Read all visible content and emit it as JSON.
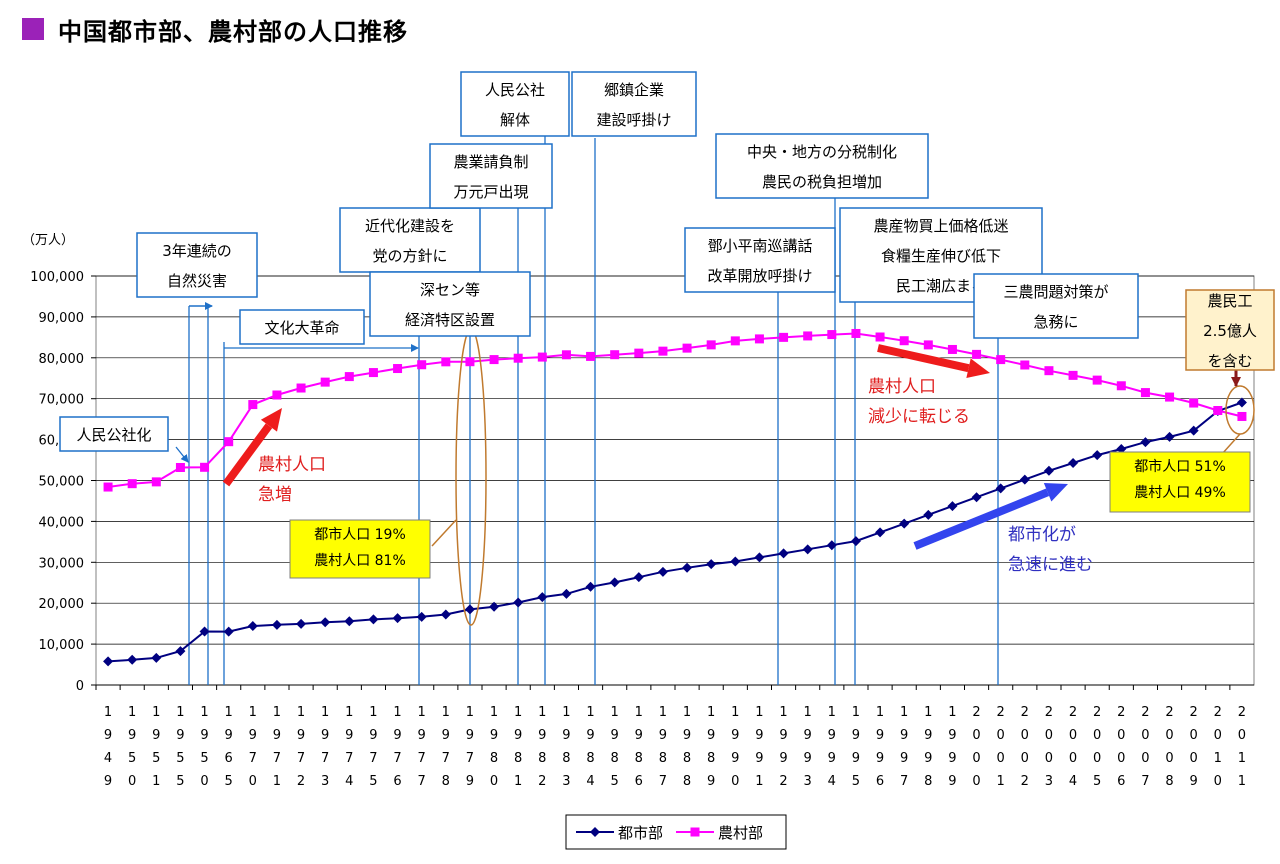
{
  "page": {
    "title": "中国都市部、農村部の人口推移",
    "title_marker_color": "#9b22b8"
  },
  "chart_data": {
    "type": "line",
    "unit_label": "（万人）",
    "ylim": [
      0,
      100000
    ],
    "yticks": [
      "0",
      "10,000",
      "20,000",
      "30,000",
      "40,000",
      "50,000",
      "60,000",
      "70,000",
      "80,000",
      "90,000",
      "100,000"
    ],
    "ytick_values": [
      0,
      10000,
      20000,
      30000,
      40000,
      50000,
      60000,
      70000,
      80000,
      90000,
      100000
    ],
    "x": [
      "1949",
      "1950",
      "1951",
      "1955",
      "1950",
      "1965",
      "1970",
      "1971",
      "1972",
      "1973",
      "1974",
      "1975",
      "1976",
      "1977",
      "1978",
      "1979",
      "1980",
      "1981",
      "1982",
      "1983",
      "1984",
      "1985",
      "1986",
      "1987",
      "1988",
      "1989",
      "1990",
      "1991",
      "1992",
      "1993",
      "1994",
      "1995",
      "1996",
      "1997",
      "1998",
      "1999",
      "2000",
      "2001",
      "2002",
      "2003",
      "2004",
      "2005",
      "2006",
      "2007",
      "2008",
      "2009",
      "2010",
      "2011"
    ],
    "series": [
      {
        "name": "都市部",
        "color": "#000080",
        "marker": "diamond",
        "values": [
          5765,
          6169,
          6632,
          8285,
          13073,
          13045,
          14424,
          14711,
          14935,
          15345,
          15595,
          16030,
          16341,
          16669,
          17245,
          18495,
          19140,
          20171,
          21480,
          22274,
          24017,
          25094,
          26366,
          27674,
          28661,
          29540,
          30195,
          31203,
          32175,
          33173,
          34169,
          35174,
          37304,
          39449,
          41608,
          43748,
          45906,
          48064,
          50212,
          52376,
          54283,
          56212,
          57706,
          59379,
          60667,
          62186,
          66978,
          69079
        ]
      },
      {
        "name": "農村部",
        "color": "#ff00ff",
        "marker": "square",
        "values": [
          48402,
          49224,
          49665,
          53180,
          53228,
          59493,
          68568,
          70903,
          72611,
          74053,
          75407,
          76390,
          77376,
          78305,
          79014,
          79047,
          79565,
          79901,
          80174,
          80734,
          80340,
          80757,
          81141,
          81626,
          82365,
          83164,
          84138,
          84620,
          84996,
          85344,
          85681,
          85947,
          85085,
          84177,
          83153,
          82038,
          80837,
          79563,
          78241,
          76851,
          75705,
          74544,
          73160,
          71496,
          70399,
          68938,
          67113,
          65656
        ]
      }
    ],
    "legend": "bottom",
    "grid": true,
    "event_labels": [
      {
        "lines": [
          "人民公社化"
        ]
      },
      {
        "lines": [
          "3年連続の",
          "自然災害"
        ]
      },
      {
        "lines": [
          "文化大革命"
        ]
      },
      {
        "lines": [
          "近代化建設を",
          "党の方針に"
        ]
      },
      {
        "lines": [
          "深セン等",
          "経済特区設置"
        ]
      },
      {
        "lines": [
          "人民公社",
          "解体"
        ]
      },
      {
        "lines": [
          "農業請負制",
          "万元戸出現"
        ]
      },
      {
        "lines": [
          "郷鎮企業",
          "建設呼掛け"
        ]
      },
      {
        "lines": [
          "中央・地方の分税制化",
          "農民の税負担増加"
        ]
      },
      {
        "lines": [
          "鄧小平南巡講話",
          "改革開放呼掛け"
        ]
      },
      {
        "lines": [
          "農産物買上価格低迷",
          "食糧生産伸び低下",
          "民工潮広まる"
        ]
      },
      {
        "lines": [
          "三農問題対策が",
          "急務に"
        ]
      },
      {
        "lines": [
          "農民工",
          "2.5億人",
          "を含む"
        ]
      }
    ],
    "annotations": [
      {
        "lines": [
          "農村人口",
          "急増"
        ],
        "color": "#e02020"
      },
      {
        "lines": [
          "農村人口",
          "減少に転じる"
        ],
        "color": "#e02020"
      },
      {
        "lines": [
          "都市化が",
          "急速に進む"
        ],
        "color": "#3030c0"
      },
      {
        "lines": [
          "都市人口 19%",
          "農村人口 81%"
        ]
      },
      {
        "lines": [
          "都市人口 51%",
          "農村人口 49%"
        ]
      }
    ]
  }
}
